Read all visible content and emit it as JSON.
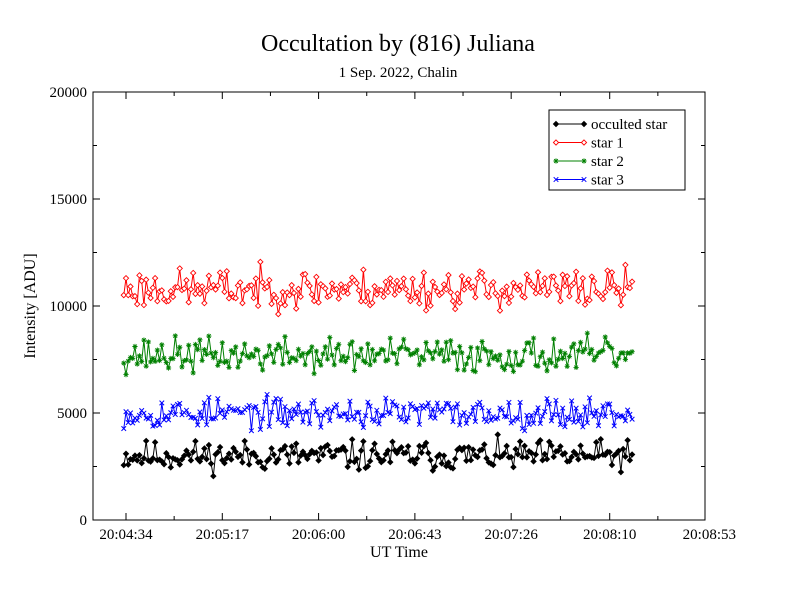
{
  "chart_data": {
    "type": "line",
    "title": "Occultation by (816) Juliana",
    "subtitle": "1 Sep. 2022, Chalin",
    "xlabel": "UT Time",
    "ylabel": "Intensity [ADU]",
    "x_range_seconds_after_0400": [
      266,
      533
    ],
    "x_tick_labels": [
      "20:04:34",
      "20:05:17",
      "20:06:00",
      "20:06:43",
      "20:07:26",
      "20:08:10",
      "20:08:53"
    ],
    "ylim": [
      0,
      20000
    ],
    "y_ticks": [
      0,
      5000,
      10000,
      15000,
      20000
    ],
    "legend_position": "top-right",
    "grid": false,
    "x_start_time": "20:04:33",
    "x_end_time": "20:08:20",
    "n_points": 228,
    "series": [
      {
        "name": "occulted star",
        "color": "#000000",
        "marker": "diamond-filled",
        "mean": 3000,
        "amplitude": 650,
        "seed": 11
      },
      {
        "name": "star 1",
        "color": "#ff0000",
        "marker": "diamond-open",
        "mean": 10800,
        "amplitude": 850,
        "seed": 23
      },
      {
        "name": "star 2",
        "color": "#008000",
        "marker": "star",
        "mean": 7700,
        "amplitude": 750,
        "seed": 37
      },
      {
        "name": "star 3",
        "color": "#0000ff",
        "marker": "x",
        "mean": 5000,
        "amplitude": 650,
        "seed": 53
      }
    ]
  }
}
